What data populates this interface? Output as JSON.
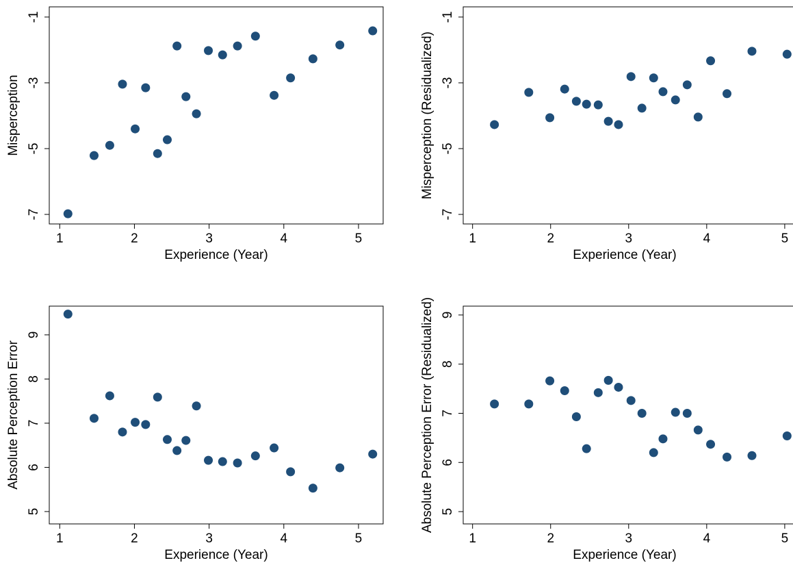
{
  "chart_data": [
    {
      "type": "scatter",
      "x_label": "Experience (Year)",
      "y_label": "Misperception",
      "color": "#1f4e79",
      "x": [
        1.11,
        1.46,
        1.67,
        1.84,
        2.01,
        2.15,
        2.31,
        2.44,
        2.57,
        2.69,
        2.83,
        2.99,
        3.18,
        3.38,
        3.62,
        3.87,
        4.09,
        4.39,
        4.75,
        5.19
      ],
      "values": [
        -6.98,
        -5.21,
        -4.9,
        -3.04,
        -4.4,
        -3.15,
        -5.15,
        -4.73,
        -1.88,
        -3.42,
        -3.94,
        -2.02,
        -2.15,
        -1.88,
        -1.58,
        -3.38,
        -2.85,
        -2.27,
        -1.85,
        -1.42
      ],
      "xlim": [
        0.86,
        5.33
      ],
      "ylim": [
        -7.29,
        -0.69
      ],
      "xticks": [
        1,
        2,
        3,
        4,
        5
      ],
      "yticks": [
        -7,
        -5,
        -3,
        -1
      ]
    },
    {
      "type": "scatter",
      "x_label": "Experience (Year)",
      "y_label": "Misperception (Residualized)",
      "color": "#1f4e79",
      "x": [
        1.28,
        1.72,
        1.99,
        2.18,
        2.33,
        2.46,
        2.61,
        2.74,
        2.87,
        3.03,
        3.17,
        3.32,
        3.44,
        3.6,
        3.75,
        3.89,
        4.05,
        4.26,
        4.58,
        5.03
      ],
      "values": [
        -4.27,
        -3.29,
        -4.06,
        -3.19,
        -3.56,
        -3.65,
        -3.67,
        -4.17,
        -4.27,
        -2.81,
        -3.77,
        -2.85,
        -3.27,
        -3.52,
        -3.06,
        -4.04,
        -2.33,
        -3.33,
        -2.04,
        -2.13
      ],
      "xlim": [
        0.88,
        5.22
      ],
      "ylim": [
        -7.29,
        -0.69
      ],
      "xticks": [
        1,
        2,
        3,
        4,
        5
      ],
      "yticks": [
        -7,
        -5,
        -3,
        -1
      ]
    },
    {
      "type": "scatter",
      "x_label": "Experience (Year)",
      "y_label": "Absolute Perception Error",
      "color": "#1f4e79",
      "x": [
        1.11,
        1.46,
        1.67,
        1.84,
        2.01,
        2.15,
        2.31,
        2.44,
        2.57,
        2.69,
        2.83,
        2.99,
        3.18,
        3.38,
        3.62,
        3.87,
        4.09,
        4.39,
        4.75,
        5.19
      ],
      "values": [
        9.47,
        7.11,
        7.62,
        6.8,
        7.02,
        6.97,
        7.59,
        6.63,
        6.38,
        6.61,
        7.39,
        6.16,
        6.13,
        6.1,
        6.26,
        6.44,
        5.9,
        5.53,
        5.99,
        6.3
      ],
      "xlim": [
        0.86,
        5.33
      ],
      "ylim": [
        4.72,
        9.65
      ],
      "xticks": [
        1,
        2,
        3,
        4,
        5
      ],
      "yticks": [
        5,
        6,
        7,
        8,
        9
      ]
    },
    {
      "type": "scatter",
      "x_label": "Experience (Year)",
      "y_label": "Absolute Perception Error (Residualized)",
      "color": "#1f4e79",
      "x": [
        1.28,
        1.72,
        1.99,
        2.18,
        2.33,
        2.46,
        2.61,
        2.74,
        2.87,
        3.03,
        3.17,
        3.32,
        3.44,
        3.6,
        3.75,
        3.89,
        4.05,
        4.26,
        4.58,
        5.03
      ],
      "values": [
        7.19,
        7.19,
        7.66,
        7.46,
        6.93,
        6.28,
        7.42,
        7.67,
        7.53,
        7.26,
        7.0,
        6.2,
        6.48,
        7.02,
        7.0,
        6.66,
        6.37,
        6.11,
        6.14,
        6.54
      ],
      "xlim": [
        0.88,
        5.22
      ],
      "ylim": [
        4.75,
        9.18
      ],
      "xticks": [
        1,
        2,
        3,
        4,
        5
      ],
      "yticks": [
        5,
        6,
        7,
        8,
        9
      ]
    }
  ]
}
